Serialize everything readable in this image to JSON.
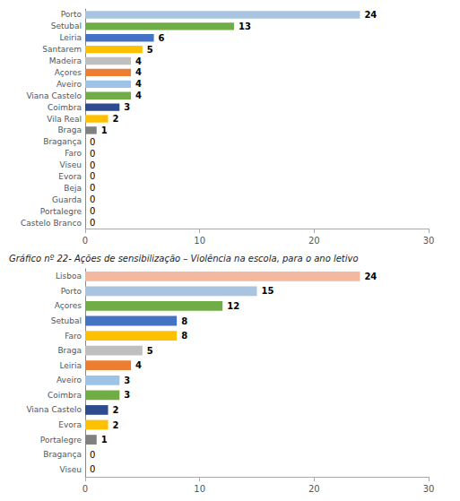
{
  "chart_data": [
    {
      "type": "bar",
      "orientation": "horizontal",
      "categories": [
        "Porto",
        "Setubal",
        "Leiria",
        "Santarem",
        "Madeira",
        "Açores",
        "Aveiro",
        "Viana Castelo",
        "Coimbra",
        "Vila Real",
        "Braga",
        "Bragança",
        "Faro",
        "Viseu",
        "Evora",
        "Beja",
        "Guarda",
        "Portalegre",
        "Castelo Branco"
      ],
      "values": [
        24,
        13,
        6,
        5,
        4,
        4,
        4,
        4,
        3,
        2,
        1,
        0,
        0,
        0,
        0,
        0,
        0,
        0,
        0
      ],
      "colors": [
        "#a8c4e0",
        "#70ad47",
        "#4472c4",
        "#ffc000",
        "#bfbfbf",
        "#ed7d31",
        "#9dc3e6",
        "#70ad47",
        "#2e4b8f",
        "#ffc000",
        "#808080",
        "#d9d9d9",
        "#d9d9d9",
        "#d9d9d9",
        "#d9d9d9",
        "#d9d9d9",
        "#d9d9d9",
        "#d9d9d9",
        "#d9d9d9"
      ],
      "xlim": [
        0,
        30
      ],
      "xticks": [
        0,
        10,
        20,
        30
      ],
      "grid": false,
      "data_labels": true
    },
    {
      "type": "bar",
      "orientation": "horizontal",
      "title": "Gráfico nº 22- Ações de sensibilização – Violência na escola, para o ano letivo",
      "categories": [
        "Lisboa",
        "Porto",
        "Açores",
        "Setubal",
        "Faro",
        "Braga",
        "Leiria",
        "Aveiro",
        "Coimbra",
        "Viana Castelo",
        "Evora",
        "Portalegre",
        "Bragança",
        "Viseu"
      ],
      "values": [
        24,
        15,
        12,
        8,
        8,
        5,
        4,
        3,
        3,
        2,
        2,
        1,
        0,
        0
      ],
      "colors": [
        "#f4b8a0",
        "#a8c4e0",
        "#70ad47",
        "#4472c4",
        "#ffc000",
        "#bfbfbf",
        "#ed7d31",
        "#9dc3e6",
        "#70ad47",
        "#2e4b8f",
        "#ffc000",
        "#808080",
        "#d9d9d9",
        "#d9d9d9"
      ],
      "xlim": [
        0,
        30
      ],
      "xticks": [
        0,
        10,
        20,
        30
      ],
      "grid": false,
      "data_labels": true
    }
  ]
}
